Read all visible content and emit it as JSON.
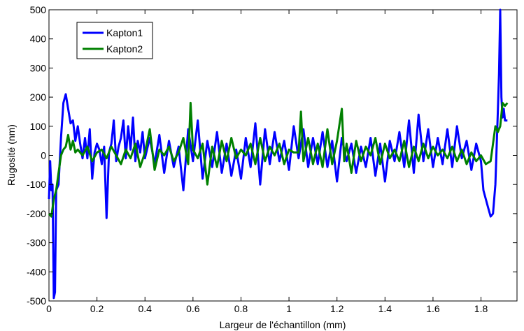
{
  "chart_data": {
    "type": "line",
    "title": "",
    "xlabel": "Largeur de l'échantillon (mm)",
    "ylabel": "Rugosité (nm)",
    "xlim": [
      0,
      1.95
    ],
    "ylim": [
      -500,
      500
    ],
    "grid": false,
    "legend_position": "top-left",
    "x_ticks": [
      "0",
      "0.2",
      "0.4",
      "0.6",
      "0.8",
      "1",
      "1.2",
      "1.4",
      "1.6",
      "1.8"
    ],
    "y_ticks": [
      "500",
      "400",
      "300",
      "200",
      "100",
      "0",
      "-100",
      "-200",
      "-300",
      "-400",
      "-500"
    ],
    "series": [
      {
        "name": "Kapton1",
        "color": "#0000ff",
        "x": [
          0,
          0.005,
          0.01,
          0.015,
          0.02,
          0.025,
          0.03,
          0.04,
          0.05,
          0.06,
          0.07,
          0.08,
          0.09,
          0.1,
          0.11,
          0.12,
          0.13,
          0.14,
          0.15,
          0.16,
          0.17,
          0.18,
          0.19,
          0.2,
          0.21,
          0.22,
          0.23,
          0.24,
          0.25,
          0.26,
          0.27,
          0.28,
          0.29,
          0.3,
          0.31,
          0.32,
          0.33,
          0.34,
          0.35,
          0.36,
          0.37,
          0.38,
          0.39,
          0.4,
          0.42,
          0.44,
          0.46,
          0.48,
          0.5,
          0.52,
          0.54,
          0.56,
          0.58,
          0.6,
          0.62,
          0.64,
          0.66,
          0.68,
          0.7,
          0.72,
          0.74,
          0.76,
          0.78,
          0.8,
          0.82,
          0.84,
          0.86,
          0.88,
          0.9,
          0.92,
          0.94,
          0.96,
          0.98,
          1.0,
          1.02,
          1.04,
          1.06,
          1.08,
          1.1,
          1.12,
          1.14,
          1.16,
          1.18,
          1.2,
          1.22,
          1.24,
          1.26,
          1.28,
          1.3,
          1.32,
          1.34,
          1.36,
          1.38,
          1.4,
          1.42,
          1.44,
          1.46,
          1.48,
          1.5,
          1.52,
          1.54,
          1.56,
          1.58,
          1.6,
          1.62,
          1.64,
          1.66,
          1.68,
          1.7,
          1.72,
          1.74,
          1.76,
          1.78,
          1.8,
          1.81,
          1.82,
          1.83,
          1.84,
          1.85,
          1.86,
          1.87,
          1.875,
          1.88,
          1.885,
          1.89,
          1.895,
          1.9,
          1.91
        ],
        "y": [
          -150,
          -20,
          -120,
          -100,
          -490,
          -470,
          -120,
          -100,
          60,
          180,
          210,
          160,
          110,
          120,
          50,
          100,
          40,
          -10,
          60,
          -10,
          90,
          -80,
          10,
          40,
          20,
          -30,
          30,
          -215,
          10,
          40,
          120,
          -20,
          30,
          60,
          120,
          -10,
          100,
          20,
          130,
          -20,
          50,
          10,
          80,
          -10,
          60,
          -30,
          70,
          -60,
          50,
          -40,
          30,
          -120,
          90,
          -20,
          120,
          -80,
          50,
          -40,
          80,
          -60,
          40,
          -70,
          20,
          -80,
          60,
          -40,
          110,
          -100,
          90,
          -30,
          80,
          -20,
          50,
          -50,
          100,
          -10,
          90,
          -40,
          60,
          -30,
          80,
          -40,
          50,
          -90,
          60,
          -20,
          40,
          -60,
          30,
          -40,
          60,
          -70,
          40,
          -90,
          50,
          -20,
          80,
          -40,
          120,
          -60,
          140,
          -20,
          90,
          -40,
          60,
          -30,
          90,
          -40,
          100,
          -10,
          50,
          -50,
          40,
          -20,
          -120,
          -150,
          -180,
          -210,
          -200,
          -100,
          150,
          280,
          500,
          200,
          130,
          160,
          120,
          120
        ]
      },
      {
        "name": "Kapton2",
        "color": "#008000",
        "x": [
          0,
          0.01,
          0.02,
          0.03,
          0.04,
          0.05,
          0.06,
          0.07,
          0.08,
          0.09,
          0.1,
          0.11,
          0.12,
          0.14,
          0.16,
          0.18,
          0.2,
          0.22,
          0.24,
          0.26,
          0.28,
          0.3,
          0.32,
          0.34,
          0.36,
          0.38,
          0.4,
          0.42,
          0.44,
          0.46,
          0.48,
          0.5,
          0.52,
          0.54,
          0.56,
          0.58,
          0.59,
          0.6,
          0.62,
          0.64,
          0.66,
          0.68,
          0.7,
          0.72,
          0.74,
          0.76,
          0.78,
          0.8,
          0.82,
          0.84,
          0.86,
          0.88,
          0.9,
          0.92,
          0.94,
          0.96,
          0.98,
          1.0,
          1.02,
          1.04,
          1.05,
          1.06,
          1.08,
          1.1,
          1.12,
          1.14,
          1.16,
          1.18,
          1.2,
          1.22,
          1.23,
          1.24,
          1.26,
          1.28,
          1.3,
          1.32,
          1.34,
          1.36,
          1.38,
          1.4,
          1.42,
          1.44,
          1.46,
          1.48,
          1.5,
          1.52,
          1.54,
          1.56,
          1.58,
          1.6,
          1.62,
          1.64,
          1.66,
          1.68,
          1.7,
          1.72,
          1.74,
          1.76,
          1.78,
          1.8,
          1.82,
          1.84,
          1.85,
          1.86,
          1.87,
          1.88,
          1.89,
          1.9,
          1.91
        ],
        "y": [
          -200,
          -210,
          -150,
          -120,
          -60,
          0,
          20,
          30,
          70,
          20,
          50,
          10,
          20,
          0,
          30,
          -20,
          10,
          20,
          -10,
          30,
          0,
          -30,
          20,
          -10,
          40,
          -40,
          10,
          90,
          -50,
          20,
          0,
          30,
          -20,
          10,
          60,
          -30,
          180,
          20,
          -10,
          40,
          -100,
          30,
          -40,
          50,
          -20,
          60,
          -10,
          20,
          0,
          40,
          -30,
          60,
          -20,
          30,
          0,
          40,
          -30,
          20,
          10,
          10,
          150,
          -20,
          60,
          -30,
          40,
          -40,
          90,
          -30,
          50,
          160,
          -20,
          40,
          -60,
          50,
          -20,
          30,
          0,
          60,
          -30,
          40,
          -10,
          20,
          -20,
          50,
          -40,
          30,
          -20,
          40,
          -10,
          30,
          0,
          20,
          -10,
          30,
          -20,
          20,
          -30,
          10,
          -20,
          0,
          -30,
          -20,
          40,
          100,
          80,
          100,
          180,
          170,
          180
        ]
      }
    ]
  }
}
